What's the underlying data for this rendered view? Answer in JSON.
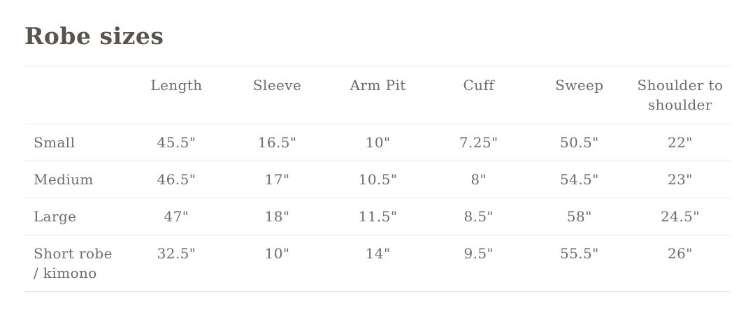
{
  "page": {
    "title": "Robe sizes"
  },
  "colors": {
    "background": "#ffffff",
    "title_text": "#5a544f",
    "table_text": "#6f6b69",
    "divider": "#e7e6e5"
  },
  "size_table": {
    "headers": [
      "",
      "Length",
      "Sleeve",
      "Arm Pit",
      "Cuff",
      "Sweep",
      "Shoulder to shoulder"
    ],
    "rows": [
      {
        "label": "Small",
        "values": [
          "45.5\"",
          "16.5\"",
          "10\"",
          "7.25\"",
          "50.5\"",
          "22\""
        ]
      },
      {
        "label": "Medium",
        "values": [
          "46.5\"",
          "17\"",
          "10.5\"",
          "8\"",
          "54.5\"",
          "23\""
        ]
      },
      {
        "label": "Large",
        "values": [
          "47\"",
          "18\"",
          "11.5\"",
          "8.5\"",
          "58\"",
          "24.5\""
        ]
      },
      {
        "label": "Short robe / kimono",
        "values": [
          "32.5\"",
          "10\"",
          "14\"",
          "9.5\"",
          "55.5\"",
          "26\""
        ]
      }
    ]
  }
}
